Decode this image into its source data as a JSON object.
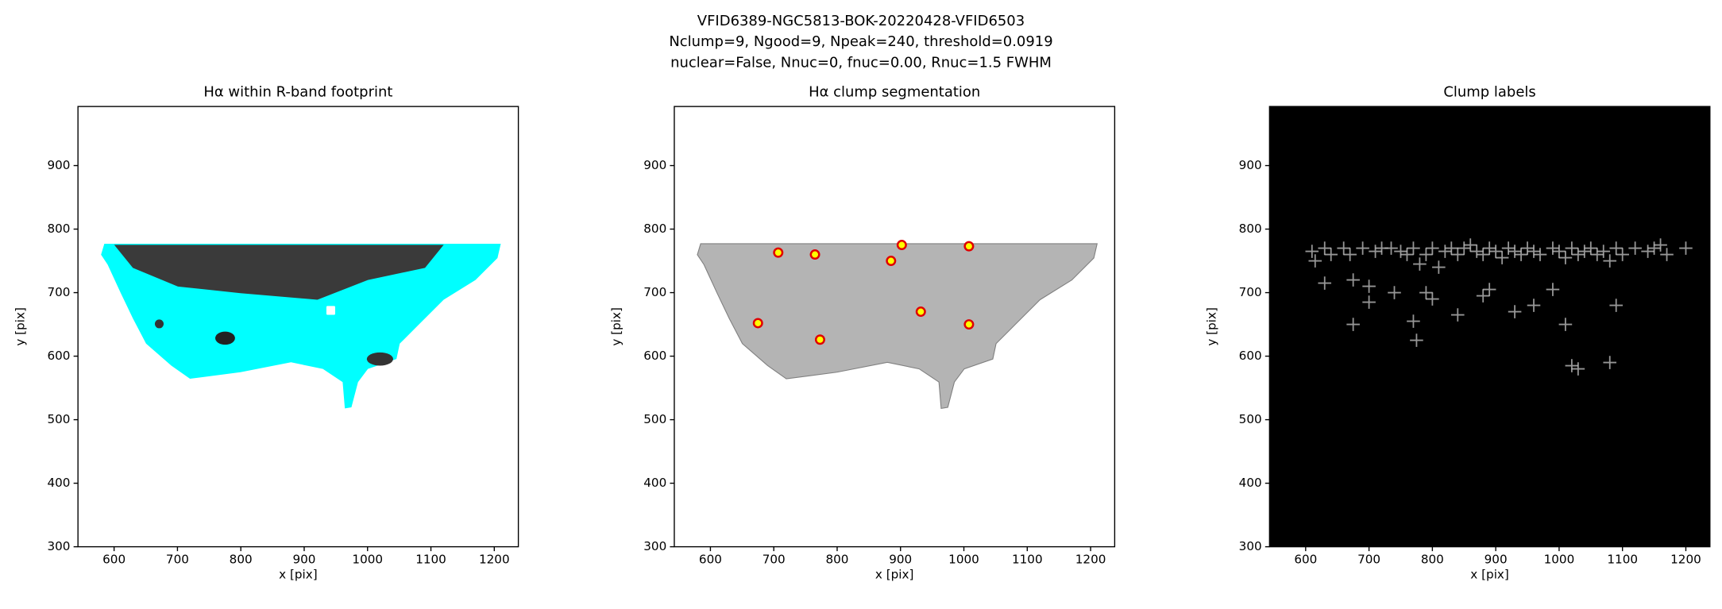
{
  "suptitle": [
    "VFID6389-NGC5813-BOK-20220428-VFID6503",
    "Nclump=9, Ngood=9, Npeak=240, threshold=0.0919",
    "nuclear=False, Nnuc=0, fnuc=0.00, Rnuc=1.5 FWHM"
  ],
  "chart_data": [
    {
      "type": "image",
      "title": "Hα within R-band footprint",
      "xlabel": "x [pix]",
      "ylabel": "y [pix]",
      "xlim": [
        543,
        1238
      ],
      "ylim": [
        300,
        993
      ],
      "xticks": [
        600,
        700,
        800,
        900,
        1000,
        1100,
        1200
      ],
      "yticks": [
        300,
        400,
        500,
        600,
        700,
        800,
        900
      ],
      "series": [
        {
          "marker": "s",
          "color": "#ffffff",
          "edgecolor": "#00ffff",
          "x": [
            942
          ],
          "y": [
            672
          ]
        }
      ]
    },
    {
      "type": "scatter",
      "title": "Hα clump segmentation",
      "xlabel": "x [pix]",
      "ylabel": "y [pix]",
      "xlim": [
        543,
        1238
      ],
      "ylim": [
        300,
        993
      ],
      "xticks": [
        600,
        700,
        800,
        900,
        1000,
        1100,
        1200
      ],
      "yticks": [
        300,
        400,
        500,
        600,
        700,
        800,
        900
      ],
      "series": [
        {
          "marker": "o",
          "color": "#ffff00",
          "edgecolor": "#e00000",
          "x": [
            707,
            765,
            885,
            902,
            1008,
            932,
            675,
            1008,
            773
          ],
          "y": [
            763,
            760,
            750,
            775,
            773,
            670,
            652,
            650,
            626
          ]
        }
      ]
    },
    {
      "type": "scatter",
      "title": "Clump labels",
      "xlabel": "x [pix]",
      "ylabel": "y [pix]",
      "background": "#000000",
      "xlim": [
        543,
        1238
      ],
      "ylim": [
        300,
        993
      ],
      "xticks": [
        600,
        700,
        800,
        900,
        1000,
        1100,
        1200
      ],
      "yticks": [
        300,
        400,
        500,
        600,
        700,
        800,
        900
      ],
      "series": [
        {
          "marker": "+",
          "color": "#bbbbbb",
          "x": [
            610,
            615,
            630,
            640,
            660,
            670,
            675,
            690,
            700,
            710,
            720,
            735,
            750,
            760,
            770,
            780,
            790,
            800,
            810,
            820,
            830,
            840,
            850,
            860,
            870,
            880,
            890,
            900,
            910,
            920,
            930,
            940,
            950,
            960,
            970,
            990,
            1000,
            1010,
            1020,
            1030,
            1040,
            1050,
            1060,
            1070,
            1080,
            1090,
            1100,
            1120,
            1140,
            1150,
            1160,
            1170,
            1200,
            630,
            675,
            700,
            740,
            770,
            775,
            790,
            800,
            840,
            880,
            890,
            930,
            960,
            990,
            1010,
            1020,
            1030,
            1080,
            1090
          ],
          "y": [
            765,
            750,
            770,
            760,
            770,
            760,
            720,
            770,
            710,
            765,
            770,
            770,
            765,
            760,
            770,
            745,
            760,
            770,
            740,
            765,
            770,
            760,
            770,
            775,
            765,
            760,
            770,
            765,
            755,
            770,
            765,
            760,
            770,
            765,
            760,
            770,
            765,
            755,
            770,
            760,
            765,
            770,
            760,
            765,
            750,
            770,
            760,
            770,
            765,
            770,
            775,
            760,
            770,
            715,
            650,
            685,
            700,
            655,
            625,
            700,
            690,
            665,
            695,
            705,
            670,
            680,
            705,
            650,
            585,
            580,
            590,
            680
          ]
        }
      ]
    }
  ]
}
